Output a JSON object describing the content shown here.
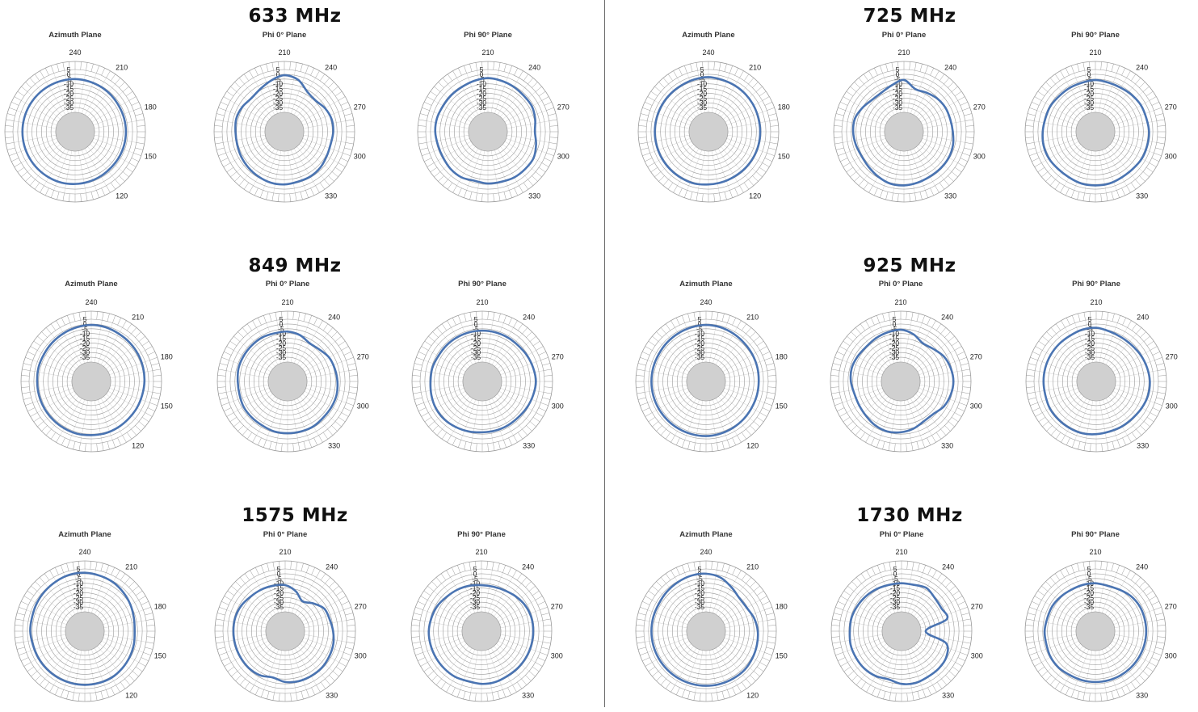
{
  "colors": {
    "trace": "#4a74b2",
    "grid": "#9b9b9b",
    "inner_disc": "#d0d0d0",
    "divider": "#6a6a6a"
  },
  "radial_ticks": [
    "5",
    "0",
    "-5",
    "-10",
    "-15",
    "-20",
    "-25",
    "-30",
    "-35"
  ],
  "chart_data": [
    {
      "frequency": "633 MHz",
      "plots": [
        {
          "title": "Azimuth Plane",
          "type": "polar",
          "rlim": [
            -40,
            5
          ],
          "angle_labels": [
            "240",
            "210",
            "180",
            "150",
            "120"
          ],
          "values": [
            -5,
            -5.5,
            -6,
            -6.5,
            -7,
            -7,
            -7,
            -7,
            -7,
            -7,
            -6.5,
            -6,
            -5.5,
            -5,
            -5,
            -5,
            -5,
            -5,
            -5,
            -5,
            -5,
            -5,
            -5,
            -5
          ]
        },
        {
          "title": "Phi 0° Plane",
          "type": "polar",
          "rlim": [
            -40,
            5
          ],
          "angle_labels": [
            "210",
            "240",
            "270",
            "300",
            "330"
          ],
          "values": [
            -1,
            -4,
            -12,
            -14,
            -11,
            -9,
            -9,
            -10,
            -9,
            -7,
            -6,
            -6,
            -5,
            -5,
            -6,
            -7,
            -8,
            -9,
            -9,
            -8,
            -9,
            -11,
            -9,
            -5
          ]
        },
        {
          "title": "Phi 90° Plane",
          "type": "polar",
          "rlim": [
            -40,
            5
          ],
          "angle_labels": [
            "210",
            "240",
            "270",
            "300",
            "330"
          ],
          "values": [
            -4,
            -5,
            -6,
            -7,
            -7,
            -9,
            -11,
            -8,
            -5,
            -5,
            -5,
            -6,
            -6,
            -7,
            -5,
            -5,
            -6,
            -6,
            -5,
            -5,
            -6,
            -6,
            -6,
            -5
          ]
        }
      ]
    },
    {
      "frequency": "725 MHz",
      "plots": [
        {
          "title": "Azimuth Plane",
          "type": "polar",
          "rlim": [
            -40,
            5
          ],
          "angle_labels": [
            "240",
            "210",
            "180",
            "150",
            "120"
          ],
          "values": [
            -3,
            -4,
            -4.5,
            -5,
            -5.5,
            -6,
            -6,
            -6,
            -6,
            -6,
            -6,
            -5.5,
            -5,
            -4,
            -4,
            -4,
            -4,
            -4,
            -4,
            -4,
            -4,
            -4,
            -4,
            -3.5
          ]
        },
        {
          "title": "Phi 0° Plane",
          "type": "polar",
          "rlim": [
            -40,
            5
          ],
          "angle_labels": [
            "210",
            "240",
            "270",
            "300",
            "330"
          ],
          "values": [
            -6,
            -14,
            -13,
            -11,
            -10,
            -10,
            -9,
            -7,
            -6,
            -6,
            -6,
            -5,
            -4,
            -4,
            -6,
            -8,
            -9,
            -8,
            -7,
            -7,
            -10,
            -13,
            -13,
            -10
          ]
        },
        {
          "title": "Phi 90° Plane",
          "type": "polar",
          "rlim": [
            -40,
            5
          ],
          "angle_labels": [
            "210",
            "240",
            "270",
            "300",
            "330"
          ],
          "values": [
            -6,
            -7,
            -7,
            -6,
            -5,
            -5,
            -4,
            -4,
            -4,
            -5,
            -5,
            -4,
            -4,
            -4,
            -5,
            -5,
            -4,
            -4,
            -5,
            -6,
            -6,
            -7,
            -7,
            -7
          ]
        }
      ]
    },
    {
      "frequency": "849 MHz",
      "plots": [
        {
          "title": "Azimuth Plane",
          "type": "polar",
          "rlim": [
            -40,
            5
          ],
          "angle_labels": [
            "240",
            "210",
            "180",
            "150",
            "120"
          ],
          "values": [
            -1,
            -1.5,
            -2.5,
            -3,
            -3.5,
            -4,
            -4.5,
            -5,
            -5,
            -5,
            -4.5,
            -4,
            -4,
            -3.5,
            -3.5,
            -3.5,
            -3.5,
            -3.5,
            -3.5,
            -3,
            -3,
            -2.5,
            -2,
            -1.5
          ]
        },
        {
          "title": "Phi 0° Plane",
          "type": "polar",
          "rlim": [
            -40,
            5
          ],
          "angle_labels": [
            "210",
            "240",
            "270",
            "300",
            "330"
          ],
          "values": [
            -8,
            -10,
            -14,
            -13,
            -10,
            -9,
            -8,
            -7,
            -7,
            -7,
            -6,
            -6,
            -6,
            -6,
            -7,
            -7,
            -7,
            -8,
            -8,
            -7,
            -7,
            -7,
            -7,
            -8
          ]
        },
        {
          "title": "Phi 90° Plane",
          "type": "polar",
          "rlim": [
            -40,
            5
          ],
          "angle_labels": [
            "210",
            "240",
            "270",
            "300",
            "330"
          ],
          "values": [
            -7,
            -7,
            -7,
            -7,
            -6,
            -5,
            -4,
            -5,
            -6,
            -7,
            -7,
            -7,
            -7,
            -6,
            -5,
            -4,
            -4,
            -5,
            -6,
            -6,
            -7,
            -7,
            -7,
            -7
          ]
        }
      ]
    },
    {
      "frequency": "925 MHz",
      "plots": [
        {
          "title": "Azimuth Plane",
          "type": "polar",
          "rlim": [
            -40,
            5
          ],
          "angle_labels": [
            "240",
            "210",
            "180",
            "150",
            "120"
          ],
          "values": [
            -1,
            -1.5,
            -2.5,
            -3.5,
            -4,
            -4.5,
            -5,
            -5,
            -5,
            -4.5,
            -4,
            -3.5,
            -3,
            -3,
            -3,
            -3,
            -3,
            -3,
            -3,
            -3,
            -3,
            -2.5,
            -2,
            -1.5
          ]
        },
        {
          "title": "Phi 0° Plane",
          "type": "polar",
          "rlim": [
            -40,
            5
          ],
          "angle_labels": [
            "210",
            "240",
            "270",
            "300",
            "330"
          ],
          "values": [
            -6,
            -9,
            -14,
            -12,
            -8,
            -6,
            -5,
            -6,
            -8,
            -12,
            -12,
            -9,
            -7,
            -6,
            -7,
            -9,
            -10,
            -10,
            -8,
            -7,
            -8,
            -9,
            -8,
            -7
          ]
        },
        {
          "title": "Phi 90° Plane",
          "type": "polar",
          "rlim": [
            -40,
            5
          ],
          "angle_labels": [
            "210",
            "240",
            "270",
            "300",
            "330"
          ],
          "values": [
            -4,
            -6,
            -7,
            -7,
            -6,
            -5,
            -4,
            -4,
            -5,
            -6,
            -6,
            -6,
            -5,
            -4,
            -4,
            -4,
            -4,
            -5,
            -5,
            -5,
            -5,
            -5,
            -5,
            -4
          ]
        }
      ]
    },
    {
      "frequency": "1575 MHz",
      "plots": [
        {
          "title": "Azimuth Plane",
          "type": "polar",
          "rlim": [
            -40,
            5
          ],
          "angle_labels": [
            "240",
            "210",
            "180",
            "150",
            "120"
          ],
          "values": [
            1,
            0,
            -1,
            -3,
            -5,
            -7,
            -8,
            -7,
            -6,
            -5,
            -4,
            -4,
            -4,
            -4,
            -4,
            -4,
            -4,
            -4,
            -3,
            -3,
            -2,
            -1,
            0,
            1
          ]
        },
        {
          "title": "Phi 0° Plane",
          "type": "polar",
          "rlim": [
            -40,
            5
          ],
          "angle_labels": [
            "210",
            "240",
            "270",
            "300",
            "330"
          ],
          "values": [
            -12,
            -17,
            -24,
            -19,
            -13,
            -12,
            -10,
            -8,
            -7,
            -6,
            -6,
            -6,
            -7,
            -10,
            -7,
            -6,
            -6,
            -6,
            -6,
            -6,
            -7,
            -9,
            -10,
            -11
          ]
        },
        {
          "title": "Phi 90° Plane",
          "type": "polar",
          "rlim": [
            -40,
            5
          ],
          "angle_labels": [
            "210",
            "240",
            "270",
            "300",
            "330"
          ],
          "values": [
            -12,
            -12,
            -11,
            -9,
            -7,
            -6,
            -6,
            -6,
            -6,
            -6,
            -6,
            -5,
            -5,
            -6,
            -5,
            -5,
            -5,
            -5,
            -5,
            -6,
            -7,
            -9,
            -10,
            -11
          ]
        }
      ]
    },
    {
      "frequency": "1730 MHz",
      "plots": [
        {
          "title": "Azimuth Plane",
          "type": "polar",
          "rlim": [
            -40,
            5
          ],
          "angle_labels": [
            "240",
            "210",
            "180",
            "150",
            "120"
          ],
          "values": [
            0,
            -2,
            -7,
            -11,
            -11,
            -8,
            -6,
            -5,
            -4,
            -3,
            -3,
            -3,
            -3,
            -3,
            -3,
            -3,
            -3,
            -3,
            -3,
            -3,
            -3,
            -2,
            -1,
            0
          ]
        },
        {
          "title": "Phi 0° Plane",
          "type": "polar",
          "rlim": [
            -40,
            5
          ],
          "angle_labels": [
            "210",
            "240",
            "270",
            "300",
            "330"
          ],
          "values": [
            -10,
            -10,
            -8,
            -11,
            -12,
            -11,
            -35,
            -12,
            -6,
            -5,
            -5,
            -4,
            -5,
            -8,
            -6,
            -5,
            -5,
            -5,
            -6,
            -6,
            -7,
            -8,
            -9,
            -10
          ]
        },
        {
          "title": "Phi 90° Plane",
          "type": "polar",
          "rlim": [
            -40,
            5
          ],
          "angle_labels": [
            "210",
            "240",
            "270",
            "300",
            "330"
          ],
          "values": [
            -10,
            -11,
            -10,
            -8,
            -7,
            -7,
            -7,
            -7,
            -7,
            -7,
            -7,
            -7,
            -7,
            -7,
            -7,
            -6,
            -6,
            -7,
            -7,
            -8,
            -8,
            -9,
            -10,
            -10
          ]
        }
      ]
    }
  ]
}
